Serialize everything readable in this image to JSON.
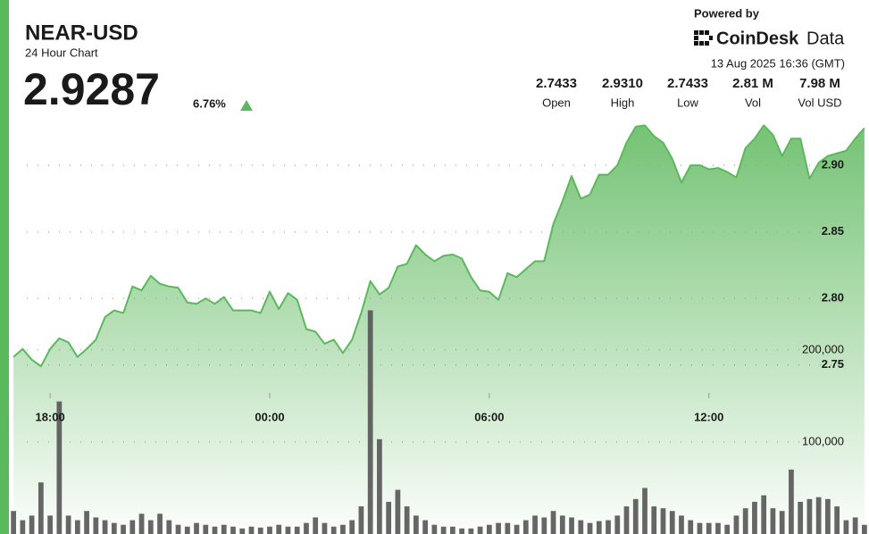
{
  "chart_data": {
    "type": "line",
    "title": "NEAR-USD",
    "subtitle": "24 Hour Chart",
    "price": "2.9287",
    "change": "6.76%",
    "powered_by": "Powered by",
    "brand": "CoinDesk",
    "brand_suffix": "Data",
    "timestamp": "13 Aug 2025 16:36 (GMT)",
    "stats": [
      {
        "value": "2.7433",
        "label": "Open"
      },
      {
        "value": "2.9310",
        "label": "High"
      },
      {
        "value": "2.7433",
        "label": "Low"
      },
      {
        "value": "2.81 M",
        "label": "Vol"
      },
      {
        "value": "7.98 M",
        "label": "Vol USD"
      }
    ],
    "categories": [
      null,
      null,
      null,
      null,
      "18:00",
      null,
      null,
      null,
      null,
      null,
      null,
      null,
      null,
      null,
      null,
      null,
      null,
      null,
      null,
      null,
      null,
      null,
      null,
      null,
      null,
      null,
      null,
      null,
      "00:00",
      null,
      null,
      null,
      null,
      null,
      null,
      null,
      null,
      null,
      null,
      null,
      null,
      null,
      null,
      null,
      null,
      null,
      null,
      null,
      null,
      null,
      null,
      null,
      "06:00",
      null,
      null,
      null,
      null,
      null,
      null,
      null,
      null,
      null,
      null,
      null,
      null,
      null,
      null,
      null,
      null,
      null,
      null,
      null,
      null,
      null,
      null,
      null,
      "12:00",
      null,
      null,
      null,
      null,
      null,
      null,
      null,
      null,
      null,
      null,
      null,
      null,
      null,
      null,
      null,
      null,
      null
    ],
    "series": [
      {
        "type": "area",
        "color": "#5cb85c",
        "values": [
          2.756,
          2.762,
          2.754,
          2.749,
          2.762,
          2.77,
          2.767,
          2.756,
          2.762,
          2.769,
          2.786,
          2.791,
          2.789,
          2.809,
          2.806,
          2.817,
          2.811,
          2.809,
          2.808,
          2.797,
          2.796,
          2.8,
          2.796,
          2.801,
          2.791,
          2.791,
          2.791,
          2.789,
          2.805,
          2.792,
          2.804,
          2.799,
          2.777,
          2.775,
          2.766,
          2.769,
          2.759,
          2.769,
          2.789,
          2.813,
          2.803,
          2.808,
          2.824,
          2.826,
          2.84,
          2.833,
          2.828,
          2.832,
          2.833,
          2.83,
          2.816,
          2.806,
          2.805,
          2.799,
          2.819,
          2.816,
          2.822,
          2.828,
          2.828,
          2.856,
          2.873,
          2.892,
          2.875,
          2.878,
          2.893,
          2.893,
          2.9,
          2.917,
          2.929,
          2.93,
          2.922,
          2.917,
          2.905,
          2.887,
          2.9,
          2.9,
          2.897,
          2.898,
          2.895,
          2.891,
          2.913,
          2.92,
          2.93,
          2.923,
          2.907,
          2.92,
          2.92,
          2.89,
          2.902,
          2.907,
          2.909,
          2.911,
          2.92,
          2.928
        ]
      },
      {
        "type": "bar",
        "axis": "y2",
        "color": "#555555",
        "values": [
          25000,
          15000,
          20000,
          56000,
          20000,
          144000,
          20000,
          15000,
          25000,
          18000,
          15000,
          12000,
          10000,
          15000,
          22000,
          15000,
          22000,
          15000,
          10000,
          8000,
          12000,
          10000,
          8000,
          10000,
          8000,
          6000,
          8000,
          7000,
          8000,
          10000,
          8000,
          8000,
          12000,
          18000,
          12000,
          8000,
          10000,
          15000,
          30000,
          243000,
          103000,
          35000,
          48000,
          30000,
          20000,
          15000,
          10000,
          8000,
          8000,
          6000,
          6000,
          8000,
          10000,
          12000,
          12000,
          10000,
          15000,
          20000,
          18000,
          25000,
          20000,
          18000,
          15000,
          12000,
          14000,
          15000,
          20000,
          30000,
          38000,
          50000,
          30000,
          28000,
          25000,
          20000,
          15000,
          12000,
          12000,
          12000,
          10000,
          20000,
          28000,
          35000,
          42000,
          28000,
          25000,
          70000,
          35000,
          38000,
          40000,
          38000,
          30000,
          15000,
          18000,
          10000
        ]
      }
    ],
    "ylim": [
      2.623,
      2.937
    ],
    "yticks": [
      {
        "value": 2.75,
        "label": "2.75"
      },
      {
        "value": 2.8,
        "label": "2.80"
      },
      {
        "value": 2.85,
        "label": "2.85"
      },
      {
        "value": 2.9,
        "label": "2.90"
      }
    ],
    "y2lim": [
      0,
      454000
    ],
    "y2ticks": [
      {
        "value": 100000,
        "label": "100,000"
      },
      {
        "value": 200000,
        "label": "200,000"
      }
    ],
    "grid": true
  }
}
